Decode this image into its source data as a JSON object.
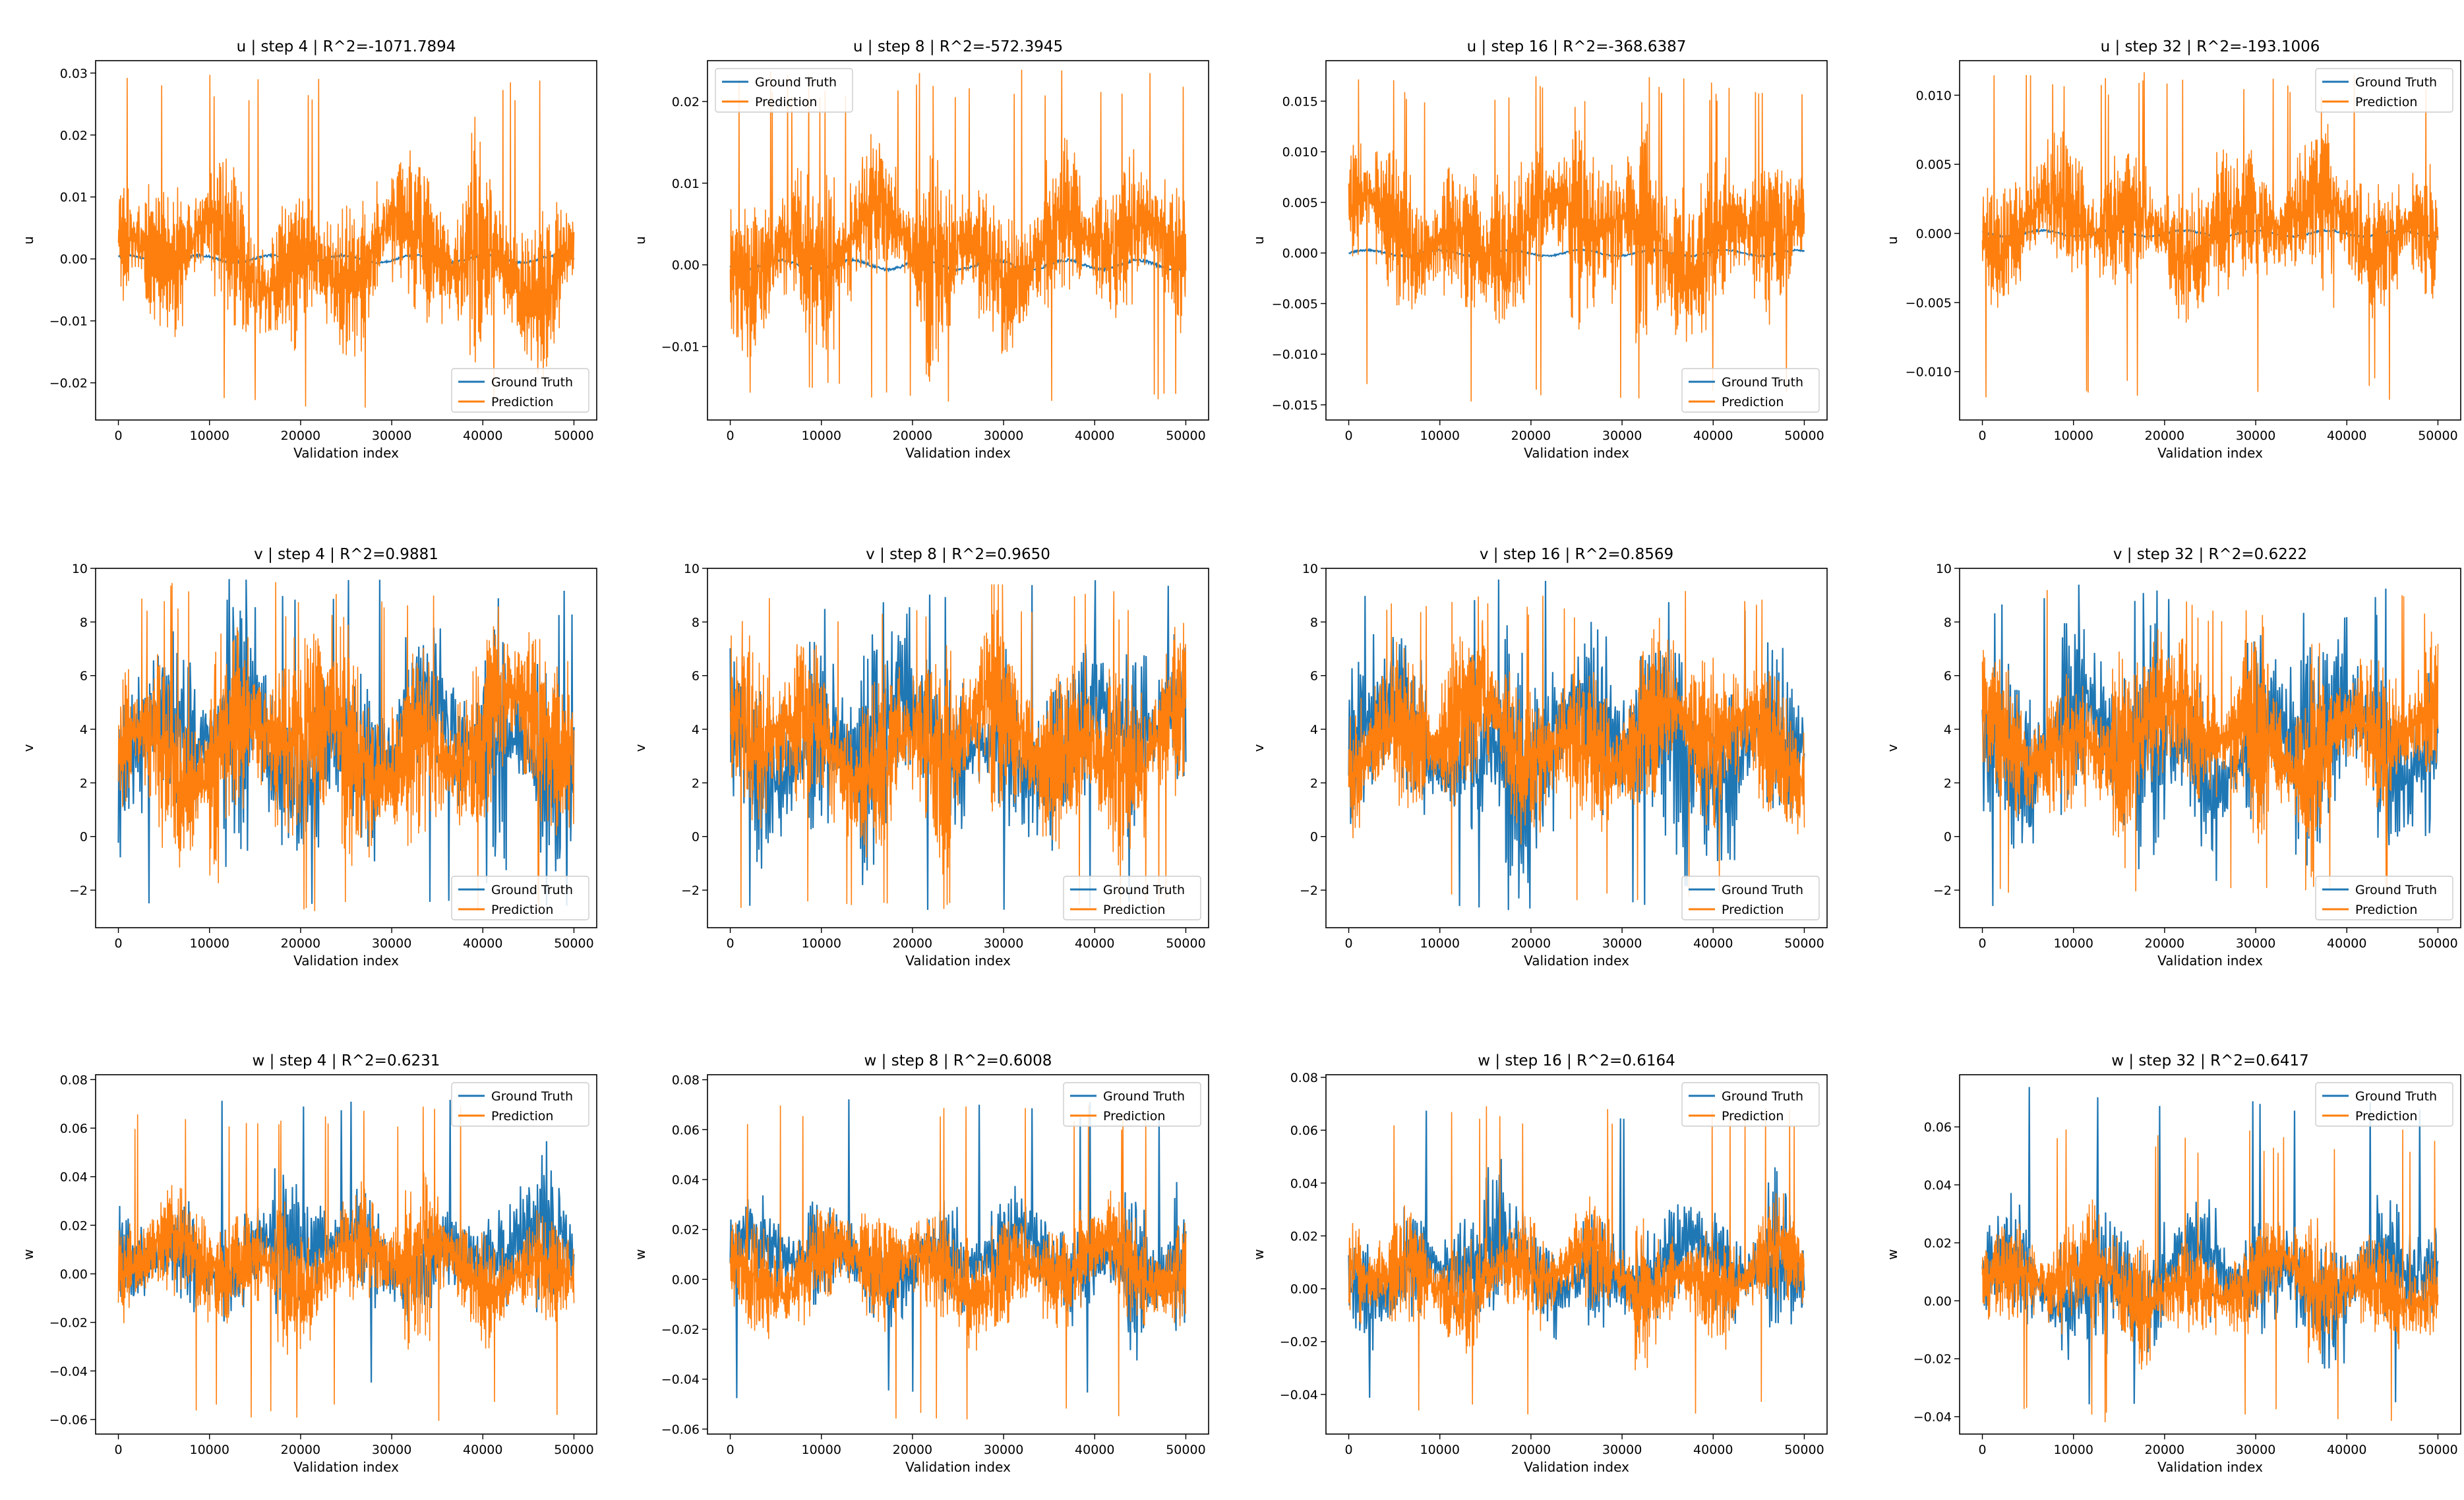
{
  "colors": {
    "ground_truth": "#1f77b4",
    "prediction": "#ff7f0e"
  },
  "chart_data": [
    {
      "type": "line",
      "title": "u | step 4 | R^2=-1071.7894",
      "xlabel": "Validation index",
      "ylabel": "u",
      "legend": "lower right",
      "xlim": [
        -2500,
        52500
      ],
      "xticks": [
        0,
        10000,
        20000,
        30000,
        40000,
        50000
      ],
      "ylim": [
        -0.026,
        0.032
      ],
      "yticks": [
        -0.02,
        -0.01,
        0.0,
        0.01,
        0.02,
        0.03
      ],
      "ytick_labels": [
        "−0.02",
        "−0.01",
        "0.00",
        "0.01",
        "0.02",
        "0.03"
      ],
      "series": [
        {
          "name": "Ground Truth",
          "kind": "gt",
          "center": 0.0,
          "amp": 0.0008
        },
        {
          "name": "Prediction",
          "kind": "pred",
          "center": 0.0,
          "amp": 0.012,
          "peak": 0.03,
          "trough": -0.024
        }
      ]
    },
    {
      "type": "line",
      "title": "u | step 8 | R^2=-572.3945",
      "xlabel": "Validation index",
      "ylabel": "u",
      "legend": "upper left",
      "xlim": [
        -2500,
        52500
      ],
      "xticks": [
        0,
        10000,
        20000,
        30000,
        40000,
        50000
      ],
      "ylim": [
        -0.019,
        0.025
      ],
      "yticks": [
        -0.01,
        0.0,
        0.01,
        0.02
      ],
      "ytick_labels": [
        "−0.01",
        "0.00",
        "0.01",
        "0.02"
      ],
      "series": [
        {
          "name": "Ground Truth",
          "kind": "gt",
          "center": 0.0,
          "amp": 0.0008
        },
        {
          "name": "Prediction",
          "kind": "pred",
          "center": 0.002,
          "amp": 0.009,
          "peak": 0.024,
          "trough": -0.017
        }
      ]
    },
    {
      "type": "line",
      "title": "u | step 16 | R^2=-368.6387",
      "xlabel": "Validation index",
      "ylabel": "u",
      "legend": "lower right",
      "xlim": [
        -2500,
        52500
      ],
      "xticks": [
        0,
        10000,
        20000,
        30000,
        40000,
        50000
      ],
      "ylim": [
        -0.0165,
        0.019
      ],
      "yticks": [
        -0.015,
        -0.01,
        -0.005,
        0.0,
        0.005,
        0.01,
        0.015
      ],
      "ytick_labels": [
        "−0.015",
        "−0.010",
        "−0.005",
        "0.000",
        "0.005",
        "0.010",
        "0.015"
      ],
      "series": [
        {
          "name": "Ground Truth",
          "kind": "gt",
          "center": 0.0,
          "amp": 0.0004
        },
        {
          "name": "Prediction",
          "kind": "pred",
          "center": 0.002,
          "amp": 0.007,
          "peak": 0.0175,
          "trough": -0.015
        }
      ]
    },
    {
      "type": "line",
      "title": "u | step 32 | R^2=-193.1006",
      "xlabel": "Validation index",
      "ylabel": "u",
      "legend": "upper right",
      "xlim": [
        -2500,
        52500
      ],
      "xticks": [
        0,
        10000,
        20000,
        30000,
        40000,
        50000
      ],
      "ylim": [
        -0.0135,
        0.0125
      ],
      "yticks": [
        -0.01,
        -0.005,
        0.0,
        0.005,
        0.01
      ],
      "ytick_labels": [
        "−0.010",
        "−0.005",
        "0.000",
        "0.005",
        "0.010"
      ],
      "series": [
        {
          "name": "Ground Truth",
          "kind": "gt",
          "center": 0.0,
          "amp": 0.0003
        },
        {
          "name": "Prediction",
          "kind": "pred",
          "center": 0.0005,
          "amp": 0.0045,
          "peak": 0.0118,
          "trough": -0.0122
        }
      ]
    },
    {
      "type": "line",
      "title": "v | step 4 | R^2=0.9881",
      "xlabel": "Validation index",
      "ylabel": "v",
      "legend": "lower right",
      "xlim": [
        -2500,
        52500
      ],
      "xticks": [
        0,
        10000,
        20000,
        30000,
        40000,
        50000
      ],
      "ylim": [
        -3.4,
        10.0
      ],
      "yticks": [
        -2,
        0,
        2,
        4,
        6,
        8,
        10
      ],
      "ytick_labels": [
        "−2",
        "0",
        "2",
        "4",
        "6",
        "8",
        "10"
      ],
      "series": [
        {
          "name": "Ground Truth",
          "kind": "gt",
          "center": 3.5,
          "amp": 3.2,
          "peak": 9.6,
          "trough": -2.8
        },
        {
          "name": "Prediction",
          "kind": "pred",
          "center": 3.5,
          "amp": 3.2,
          "peak": 9.5,
          "trough": -2.8
        }
      ]
    },
    {
      "type": "line",
      "title": "v | step 8 | R^2=0.9650",
      "xlabel": "Validation index",
      "ylabel": "v",
      "legend": "lower right",
      "xlim": [
        -2500,
        52500
      ],
      "xticks": [
        0,
        10000,
        20000,
        30000,
        40000,
        50000
      ],
      "ylim": [
        -3.4,
        10.0
      ],
      "yticks": [
        -2,
        0,
        2,
        4,
        6,
        8,
        10
      ],
      "ytick_labels": [
        "−2",
        "0",
        "2",
        "4",
        "6",
        "8",
        "10"
      ],
      "series": [
        {
          "name": "Ground Truth",
          "kind": "gt",
          "center": 3.5,
          "amp": 3.2,
          "peak": 9.6,
          "trough": -2.8
        },
        {
          "name": "Prediction",
          "kind": "pred",
          "center": 3.5,
          "amp": 3.1,
          "peak": 9.4,
          "trough": -2.7
        }
      ]
    },
    {
      "type": "line",
      "title": "v | step 16 | R^2=0.8569",
      "xlabel": "Validation index",
      "ylabel": "v",
      "legend": "lower right",
      "xlim": [
        -2500,
        52500
      ],
      "xticks": [
        0,
        10000,
        20000,
        30000,
        40000,
        50000
      ],
      "ylim": [
        -3.4,
        10.0
      ],
      "yticks": [
        -2,
        0,
        2,
        4,
        6,
        8,
        10
      ],
      "ytick_labels": [
        "−2",
        "0",
        "2",
        "4",
        "6",
        "8",
        "10"
      ],
      "series": [
        {
          "name": "Ground Truth",
          "kind": "gt",
          "center": 3.5,
          "amp": 3.2,
          "peak": 9.6,
          "trough": -2.8
        },
        {
          "name": "Prediction",
          "kind": "pred",
          "center": 3.6,
          "amp": 2.9,
          "peak": 9.3,
          "trough": -2.4
        }
      ]
    },
    {
      "type": "line",
      "title": "v | step 32 | R^2=0.6222",
      "xlabel": "Validation index",
      "ylabel": "v",
      "legend": "lower right",
      "xlim": [
        -2500,
        52500
      ],
      "xticks": [
        0,
        10000,
        20000,
        30000,
        40000,
        50000
      ],
      "ylim": [
        -3.4,
        10.0
      ],
      "yticks": [
        -2,
        0,
        2,
        4,
        6,
        8,
        10
      ],
      "ytick_labels": [
        "−2",
        "0",
        "2",
        "4",
        "6",
        "8",
        "10"
      ],
      "series": [
        {
          "name": "Ground Truth",
          "kind": "gt",
          "center": 3.5,
          "amp": 3.2,
          "peak": 9.6,
          "trough": -2.8
        },
        {
          "name": "Prediction",
          "kind": "pred",
          "center": 3.7,
          "amp": 2.5,
          "peak": 9.2,
          "trough": -2.2
        }
      ]
    },
    {
      "type": "line",
      "title": "w | step 4 | R^2=0.6231",
      "xlabel": "Validation index",
      "ylabel": "w",
      "legend": "upper right",
      "xlim": [
        -2500,
        52500
      ],
      "xticks": [
        0,
        10000,
        20000,
        30000,
        40000,
        50000
      ],
      "ylim": [
        -0.066,
        0.082
      ],
      "yticks": [
        -0.06,
        -0.04,
        -0.02,
        0.0,
        0.02,
        0.04,
        0.06,
        0.08
      ],
      "ytick_labels": [
        "−0.06",
        "−0.04",
        "−0.02",
        "0.00",
        "0.02",
        "0.04",
        "0.06",
        "0.08"
      ],
      "series": [
        {
          "name": "Ground Truth",
          "kind": "gt",
          "center": 0.008,
          "amp": 0.02,
          "peak": 0.074,
          "trough": -0.05
        },
        {
          "name": "Prediction",
          "kind": "pred",
          "center": 0.004,
          "amp": 0.022,
          "peak": 0.07,
          "trough": -0.061
        }
      ]
    },
    {
      "type": "line",
      "title": "w | step 8 | R^2=0.6008",
      "xlabel": "Validation index",
      "ylabel": "w",
      "legend": "upper right",
      "xlim": [
        -2500,
        52500
      ],
      "xticks": [
        0,
        10000,
        20000,
        30000,
        40000,
        50000
      ],
      "ylim": [
        -0.062,
        0.082
      ],
      "yticks": [
        -0.06,
        -0.04,
        -0.02,
        0.0,
        0.02,
        0.04,
        0.06,
        0.08
      ],
      "ytick_labels": [
        "−0.06",
        "−0.04",
        "−0.02",
        "0.00",
        "0.02",
        "0.04",
        "0.06",
        "0.08"
      ],
      "series": [
        {
          "name": "Ground Truth",
          "kind": "gt",
          "center": 0.008,
          "amp": 0.02,
          "peak": 0.074,
          "trough": -0.05
        },
        {
          "name": "Prediction",
          "kind": "pred",
          "center": 0.004,
          "amp": 0.021,
          "peak": 0.07,
          "trough": -0.058
        }
      ]
    },
    {
      "type": "line",
      "title": "w | step 16 | R^2=0.6164",
      "xlabel": "Validation index",
      "ylabel": "w",
      "legend": "upper right",
      "xlim": [
        -2500,
        52500
      ],
      "xticks": [
        0,
        10000,
        20000,
        30000,
        40000,
        50000
      ],
      "ylim": [
        -0.055,
        0.081
      ],
      "yticks": [
        -0.04,
        -0.02,
        0.0,
        0.02,
        0.04,
        0.06,
        0.08
      ],
      "ytick_labels": [
        "−0.04",
        "−0.02",
        "0.00",
        "0.02",
        "0.04",
        "0.06",
        "0.08"
      ],
      "series": [
        {
          "name": "Ground Truth",
          "kind": "gt",
          "center": 0.008,
          "amp": 0.02,
          "peak": 0.074,
          "trough": -0.045
        },
        {
          "name": "Prediction",
          "kind": "pred",
          "center": 0.005,
          "amp": 0.019,
          "peak": 0.07,
          "trough": -0.048
        }
      ]
    },
    {
      "type": "line",
      "title": "w | step 32 | R^2=0.6417",
      "xlabel": "Validation index",
      "ylabel": "w",
      "legend": "upper right",
      "xlim": [
        -2500,
        52500
      ],
      "xticks": [
        0,
        10000,
        20000,
        30000,
        40000,
        50000
      ],
      "ylim": [
        -0.046,
        0.078
      ],
      "yticks": [
        -0.04,
        -0.02,
        0.0,
        0.02,
        0.04,
        0.06
      ],
      "ytick_labels": [
        "−0.04",
        "−0.02",
        "0.00",
        "0.02",
        "0.04",
        "0.06"
      ],
      "series": [
        {
          "name": "Ground Truth",
          "kind": "gt",
          "center": 0.008,
          "amp": 0.02,
          "peak": 0.074,
          "trough": -0.04
        },
        {
          "name": "Prediction",
          "kind": "pred",
          "center": 0.006,
          "amp": 0.016,
          "peak": 0.06,
          "trough": -0.042
        }
      ]
    }
  ]
}
